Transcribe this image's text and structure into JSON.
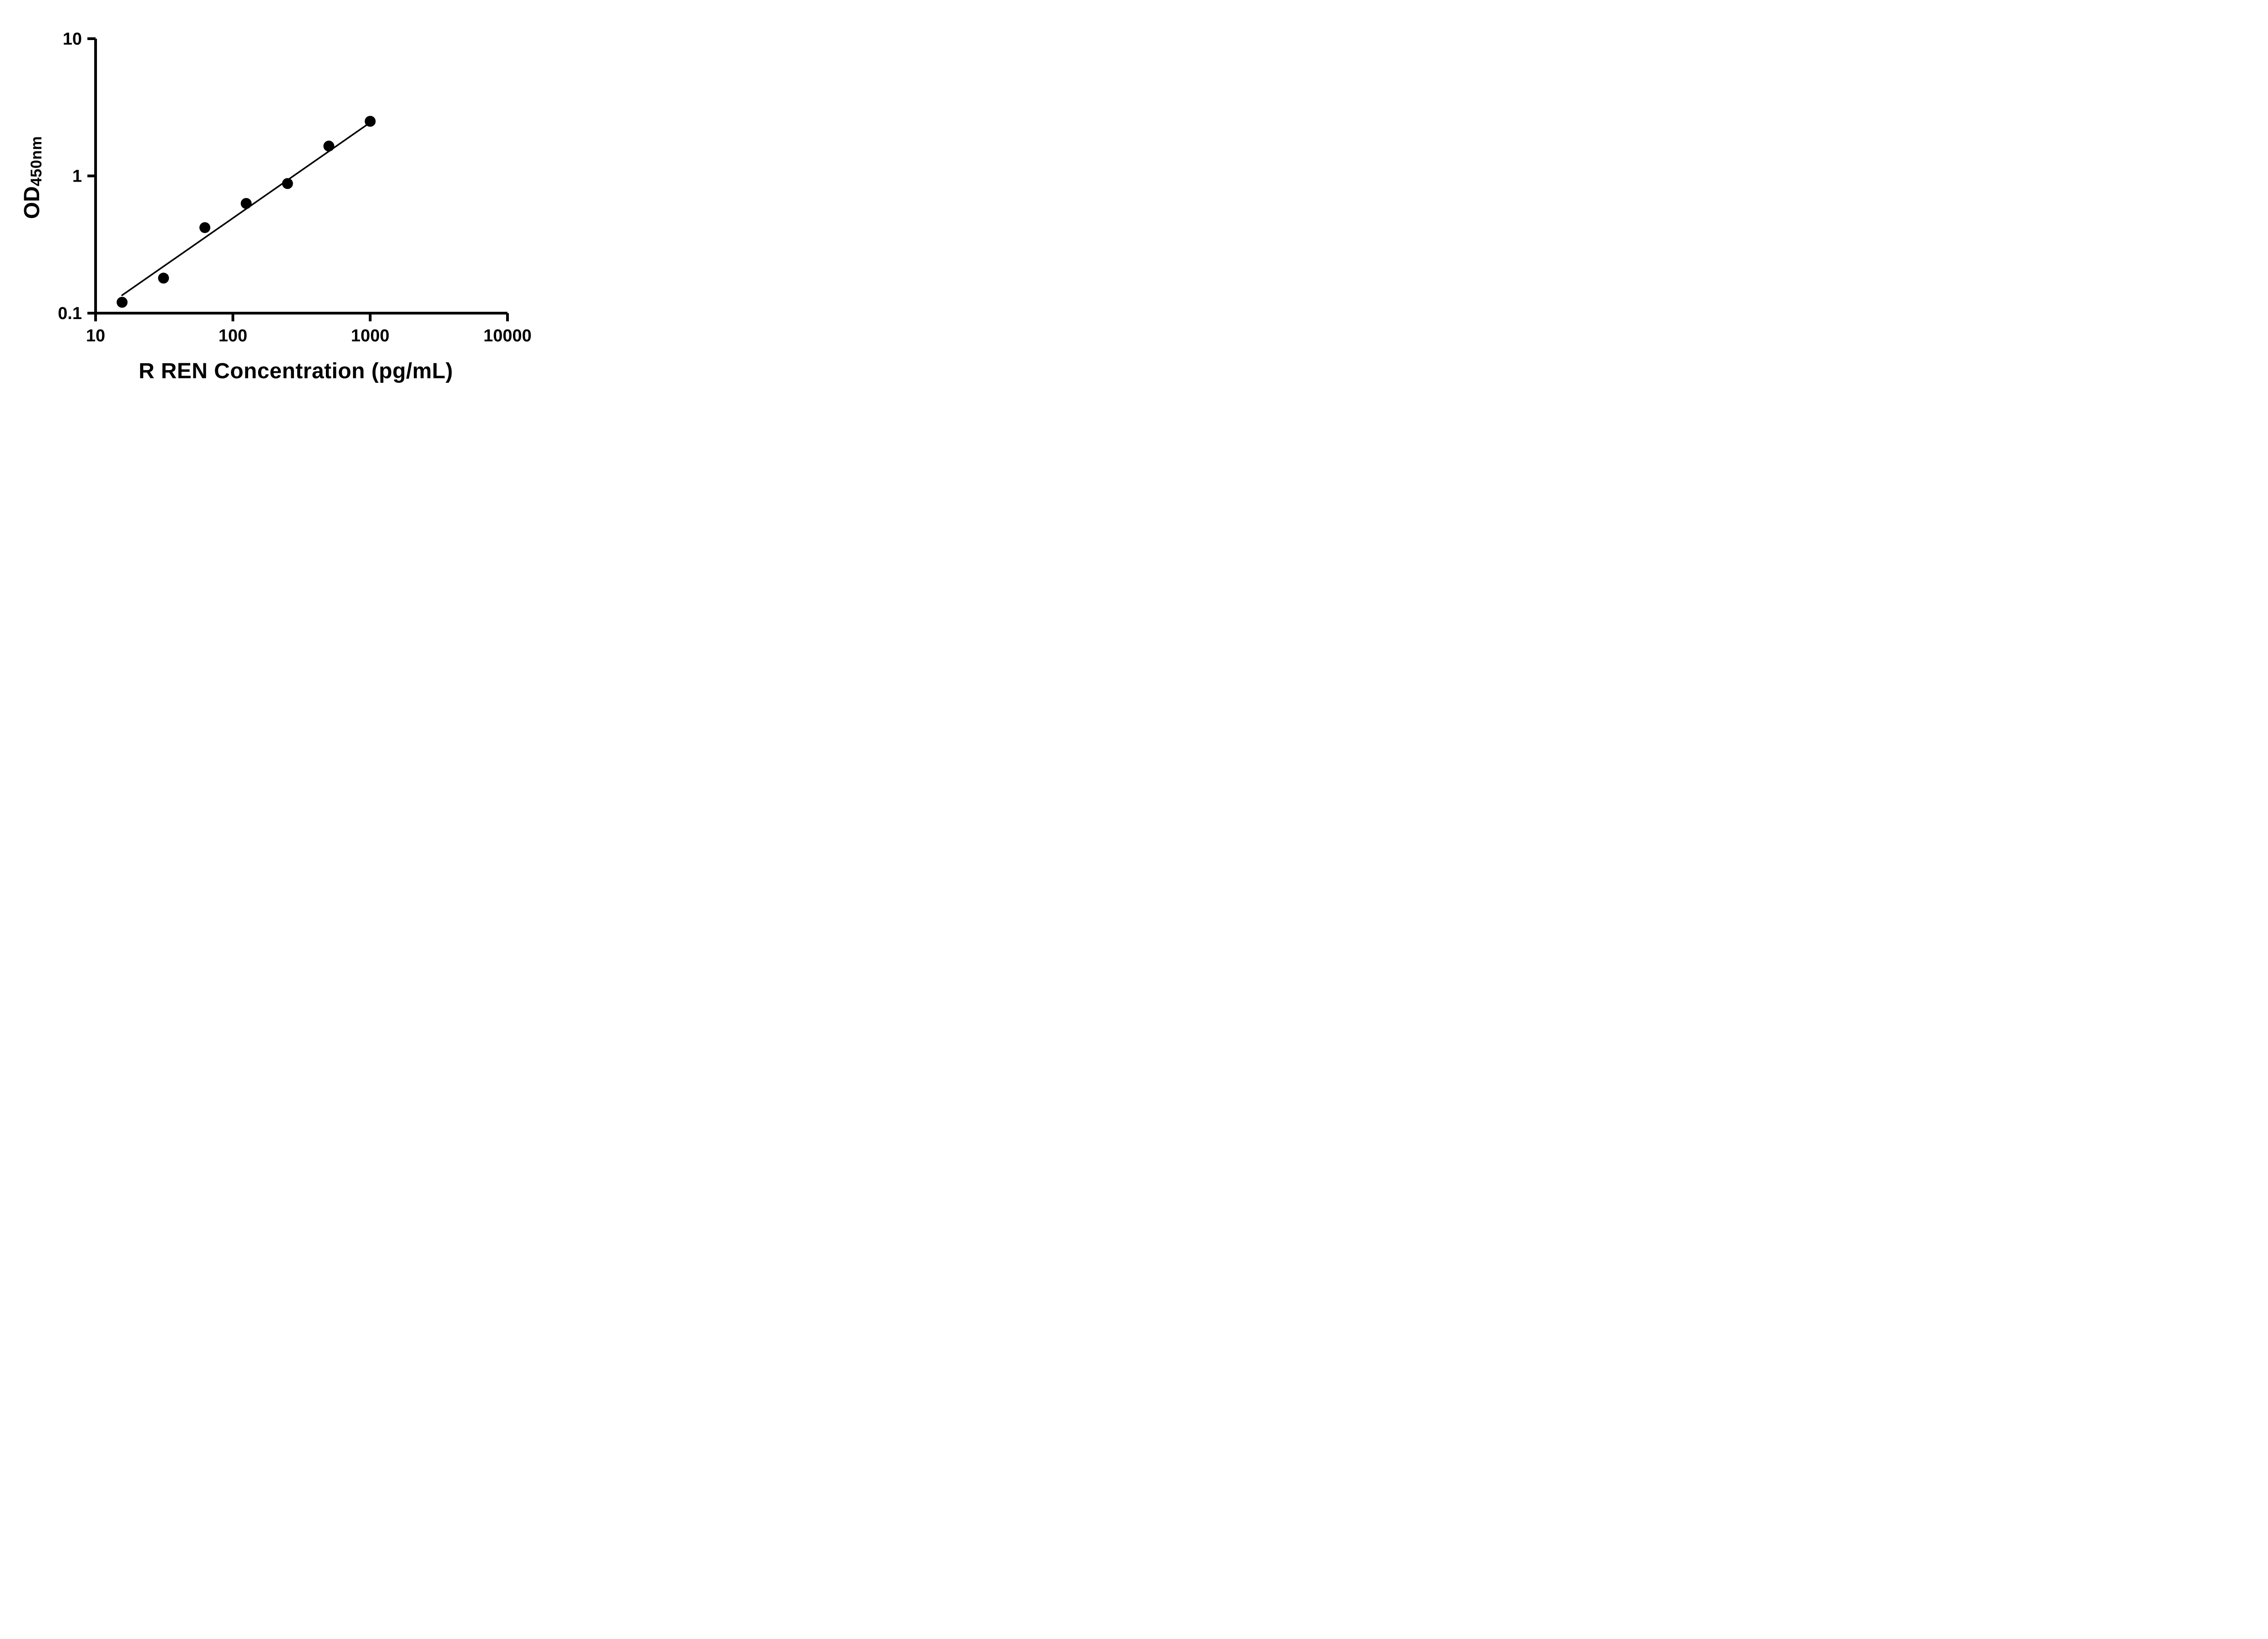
{
  "page": {
    "background_color": "#ffffff",
    "accent_color": "#000000"
  },
  "chart_data": {
    "type": "scatter",
    "title": "",
    "xlabel": "R REN Concentration (pg/mL)",
    "ylabel_main": "OD",
    "ylabel_sub": "450nm",
    "x_scale": "log",
    "y_scale": "log",
    "xlim": [
      10,
      10000
    ],
    "ylim": [
      0.1,
      10
    ],
    "x_ticks": [
      10,
      100,
      1000,
      10000
    ],
    "x_tick_labels": [
      "10",
      "100",
      "1000",
      "10000"
    ],
    "y_ticks": [
      0.1,
      1,
      10
    ],
    "y_tick_labels": [
      "0.1",
      "1",
      "10"
    ],
    "grid": false,
    "legend": "none",
    "axis_color": "#000000",
    "series": [
      {
        "name": "fit-line",
        "type": "line",
        "color": "#000000",
        "points": [
          {
            "x": 15.6,
            "y": 0.135
          },
          {
            "x": 1000,
            "y": 2.45
          }
        ]
      },
      {
        "name": "standard-curve-points",
        "type": "scatter",
        "marker": "circle",
        "color": "#000000",
        "points": [
          {
            "x": 15.6,
            "y": 0.12
          },
          {
            "x": 31.25,
            "y": 0.18
          },
          {
            "x": 62.5,
            "y": 0.42
          },
          {
            "x": 125,
            "y": 0.63
          },
          {
            "x": 250,
            "y": 0.88
          },
          {
            "x": 500,
            "y": 1.65
          },
          {
            "x": 1000,
            "y": 2.5
          }
        ]
      }
    ]
  }
}
